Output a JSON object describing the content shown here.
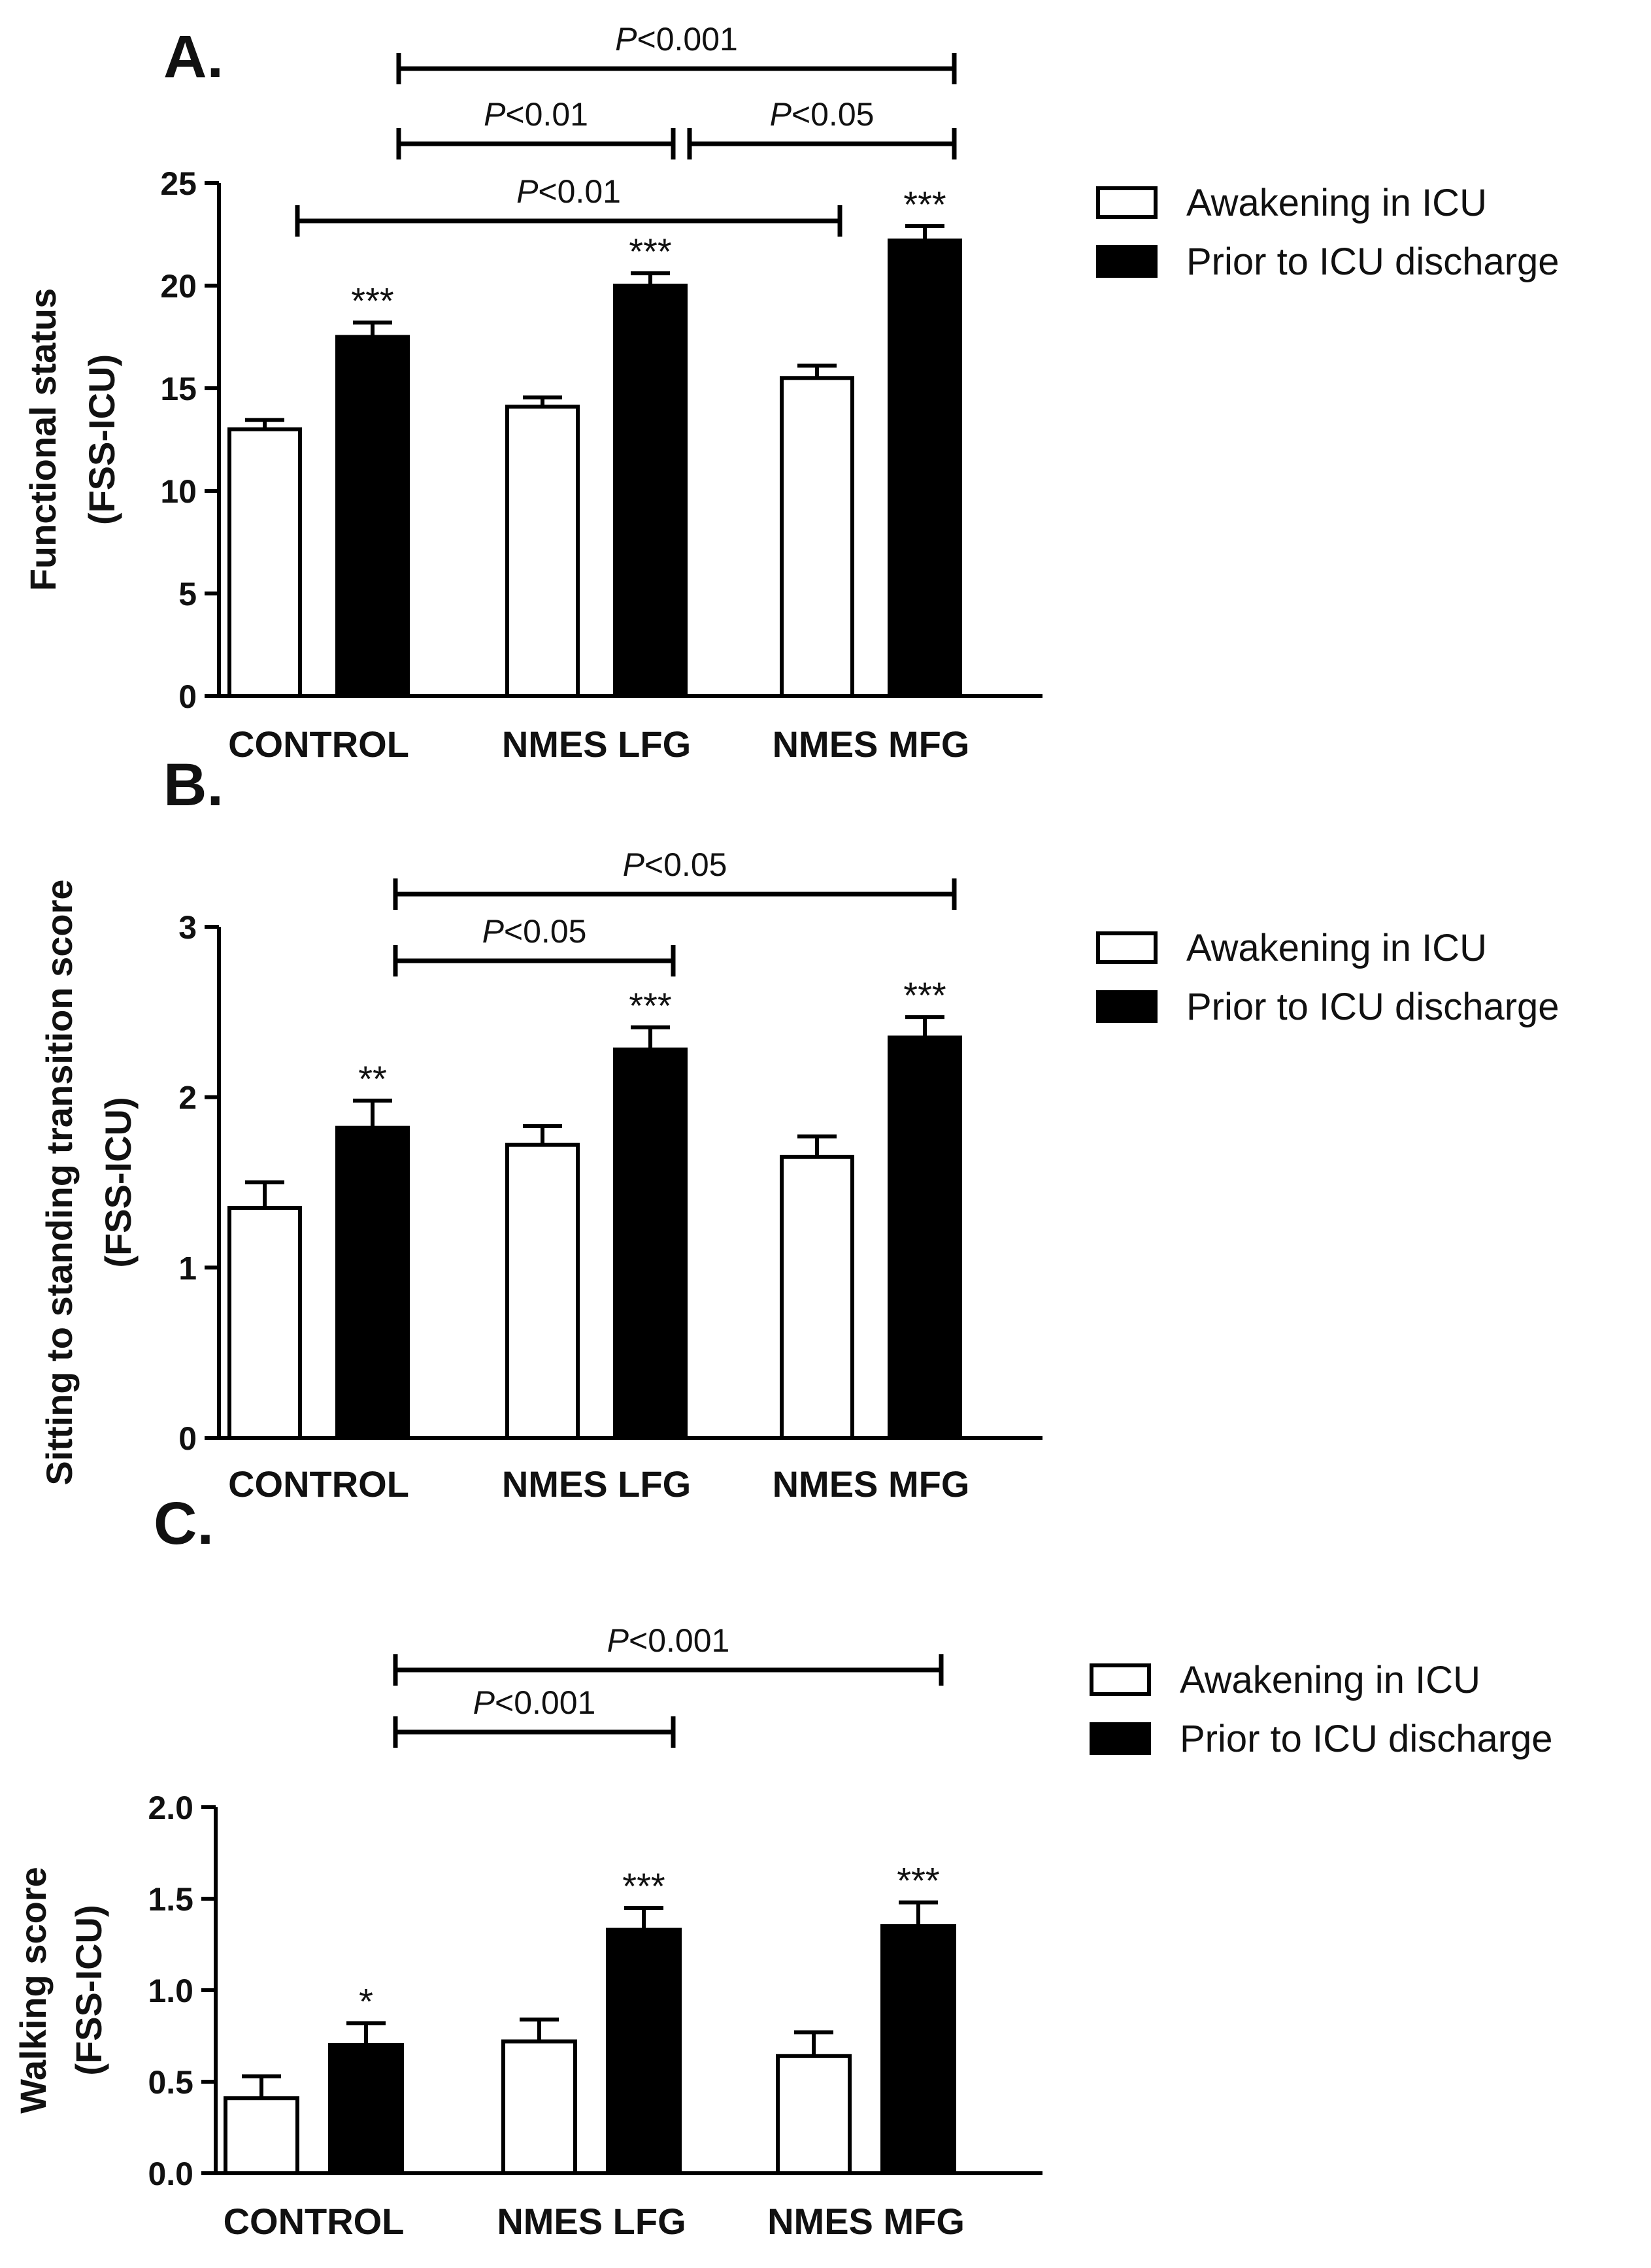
{
  "colors": {
    "awakening": "#ffffff",
    "prior": "#000000",
    "stroke": "#000000"
  },
  "chart_data": [
    {
      "panel": "A.",
      "type": "bar",
      "ylabel_lines": [
        "Functional status",
        "(FSS-ICU)"
      ],
      "ylim": [
        0,
        25
      ],
      "yticks": [
        "0",
        "5",
        "10",
        "15",
        "20",
        "25"
      ],
      "categories": [
        "CONTROL",
        "NMES LFG",
        "NMES MFG"
      ],
      "legend": [
        "Awakening in ICU",
        "Prior to ICU discharge"
      ],
      "series": [
        {
          "name": "Awakening in ICU",
          "values": [
            13.0,
            14.1,
            15.5
          ],
          "errors": [
            0.45,
            0.45,
            0.6
          ],
          "stars": [
            "",
            "",
            ""
          ]
        },
        {
          "name": "Prior to ICU discharge",
          "values": [
            17.5,
            20.0,
            22.2
          ],
          "errors": [
            0.7,
            0.6,
            0.7
          ],
          "stars": [
            "***",
            "***",
            "***"
          ]
        }
      ],
      "comparisons": [
        {
          "label_p": "P",
          "label_rest": "<0.001"
        },
        {
          "label_p": "P",
          "label_rest": "<0.01"
        },
        {
          "label_p": "P",
          "label_rest": "<0.05"
        },
        {
          "label_p": "P",
          "label_rest": "<0.01"
        }
      ]
    },
    {
      "panel": "B.",
      "type": "bar",
      "ylabel_lines": [
        "Sitting to standing transition score",
        "(FSS-ICU)"
      ],
      "ylim": [
        0,
        3
      ],
      "yticks": [
        "0",
        "1",
        "2",
        "3"
      ],
      "categories": [
        "CONTROL",
        "NMES LFG",
        "NMES MFG"
      ],
      "legend": [
        "Awakening in ICU",
        "Prior to ICU discharge"
      ],
      "series": [
        {
          "name": "Awakening in ICU",
          "values": [
            1.35,
            1.72,
            1.65
          ],
          "errors": [
            0.15,
            0.11,
            0.12
          ],
          "stars": [
            "",
            "",
            ""
          ]
        },
        {
          "name": "Prior to ICU discharge",
          "values": [
            1.82,
            2.28,
            2.35
          ],
          "errors": [
            0.16,
            0.13,
            0.12
          ],
          "stars": [
            "**",
            "***",
            "***"
          ]
        }
      ],
      "comparisons": [
        {
          "label_p": "P",
          "label_rest": "<0.05"
        },
        {
          "label_p": "P",
          "label_rest": "<0.05"
        }
      ]
    },
    {
      "panel": "C.",
      "type": "bar",
      "ylabel_lines": [
        "Walking score",
        "(FSS-ICU)"
      ],
      "ylim": [
        0,
        2
      ],
      "yticks": [
        "0.0",
        "0.5",
        "1.0",
        "1.5",
        "2.0"
      ],
      "categories": [
        "CONTROL",
        "NMES LFG",
        "NMES MFG"
      ],
      "legend": [
        "Awakening in ICU",
        "Prior to ICU discharge"
      ],
      "series": [
        {
          "name": "Awakening in ICU",
          "values": [
            0.41,
            0.72,
            0.64
          ],
          "errors": [
            0.12,
            0.12,
            0.13
          ],
          "stars": [
            "",
            "",
            ""
          ]
        },
        {
          "name": "Prior to ICU discharge",
          "values": [
            0.7,
            1.33,
            1.35
          ],
          "errors": [
            0.12,
            0.12,
            0.13
          ],
          "stars": [
            "*",
            "***",
            "***"
          ]
        }
      ],
      "comparisons": [
        {
          "label_p": "P",
          "label_rest": "<0.001"
        },
        {
          "label_p": "P",
          "label_rest": "<0.001"
        }
      ]
    }
  ]
}
